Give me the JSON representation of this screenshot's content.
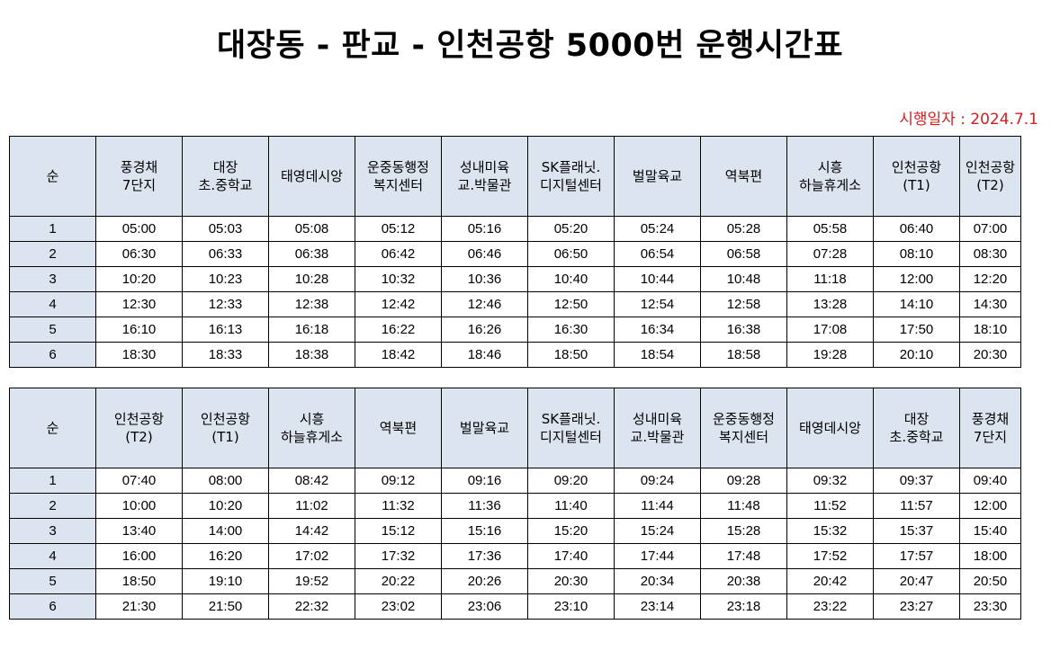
{
  "title": "대장동 - 판교 - 인천공항 5000번 운행시간표",
  "effective_date": "시행일자 : 2024.7.1",
  "tables": [
    {
      "headers": [
        "순",
        "풍경채\n7단지",
        "대장\n초.중학교",
        "태영데시앙",
        "운중동행정\n복지센터",
        "성내미육\n교.박물관",
        "SK플래닛.\n디지털센터",
        "벌말육교",
        "역북편",
        "시흥\n하늘휴게소",
        "인천공항\n(T1)",
        "인천공항\n(T2)"
      ],
      "rows": [
        [
          "1",
          "05:00",
          "05:03",
          "05:08",
          "05:12",
          "05:16",
          "05:20",
          "05:24",
          "05:28",
          "05:58",
          "06:40",
          "07:00"
        ],
        [
          "2",
          "06:30",
          "06:33",
          "06:38",
          "06:42",
          "06:46",
          "06:50",
          "06:54",
          "06:58",
          "07:28",
          "08:10",
          "08:30"
        ],
        [
          "3",
          "10:20",
          "10:23",
          "10:28",
          "10:32",
          "10:36",
          "10:40",
          "10:44",
          "10:48",
          "11:18",
          "12:00",
          "12:20"
        ],
        [
          "4",
          "12:30",
          "12:33",
          "12:38",
          "12:42",
          "12:46",
          "12:50",
          "12:54",
          "12:58",
          "13:28",
          "14:10",
          "14:30"
        ],
        [
          "5",
          "16:10",
          "16:13",
          "16:18",
          "16:22",
          "16:26",
          "16:30",
          "16:34",
          "16:38",
          "17:08",
          "17:50",
          "18:10"
        ],
        [
          "6",
          "18:30",
          "18:33",
          "18:38",
          "18:42",
          "18:46",
          "18:50",
          "18:54",
          "18:58",
          "19:28",
          "20:10",
          "20:30"
        ]
      ]
    },
    {
      "headers": [
        "순",
        "인천공항\n(T2)",
        "인천공항\n(T1)",
        "시흥\n하늘휴게소",
        "역북편",
        "벌말육교",
        "SK플래닛.\n디지털센터",
        "성내미육\n교.박물관",
        "운중동행정\n복지센터",
        "태영데시앙",
        "대장\n초.중학교",
        "풍경채\n7단지"
      ],
      "rows": [
        [
          "1",
          "07:40",
          "08:00",
          "08:42",
          "09:12",
          "09:16",
          "09:20",
          "09:24",
          "09:28",
          "09:32",
          "09:37",
          "09:40"
        ],
        [
          "2",
          "10:00",
          "10:20",
          "11:02",
          "11:32",
          "11:36",
          "11:40",
          "11:44",
          "11:48",
          "11:52",
          "11:57",
          "12:00"
        ],
        [
          "3",
          "13:40",
          "14:00",
          "14:42",
          "15:12",
          "15:16",
          "15:20",
          "15:24",
          "15:28",
          "15:32",
          "15:37",
          "15:40"
        ],
        [
          "4",
          "16:00",
          "16:20",
          "17:02",
          "17:32",
          "17:36",
          "17:40",
          "17:44",
          "17:48",
          "17:52",
          "17:57",
          "18:00"
        ],
        [
          "5",
          "18:50",
          "19:10",
          "19:52",
          "20:22",
          "20:26",
          "20:30",
          "20:34",
          "20:38",
          "20:42",
          "20:47",
          "20:50"
        ],
        [
          "6",
          "21:30",
          "21:50",
          "22:32",
          "23:02",
          "23:06",
          "23:10",
          "23:14",
          "23:18",
          "23:22",
          "23:27",
          "23:30"
        ]
      ]
    }
  ]
}
